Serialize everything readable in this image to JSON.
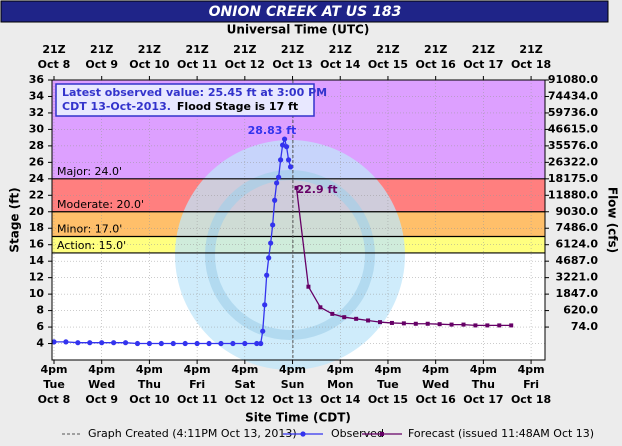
{
  "chart_data": {
    "type": "line",
    "title": "ONION CREEK AT US 183",
    "x2_label": "Universal Time (UTC)",
    "x_label": "Site Time (CDT)",
    "y_label": "Stage (ft)",
    "y2_label": "Flow (cfs)",
    "xlim": [
      "Oct 8 3pm",
      "Oct 18 11pm"
    ],
    "ylim": [
      2,
      36
    ],
    "yticks": [
      4,
      6,
      8,
      10,
      12,
      14,
      16,
      18,
      20,
      22,
      24,
      26,
      28,
      30,
      32,
      34,
      36
    ],
    "y2ticks": [
      {
        "value": 91080,
        "label": "91080.0"
      },
      {
        "value": 74434,
        "label": "74434.0"
      },
      {
        "value": 59736,
        "label": "59736.0"
      },
      {
        "value": 46615,
        "label": "46615.0"
      },
      {
        "value": 35576,
        "label": "35576.0"
      },
      {
        "value": 26322,
        "label": "26322.0"
      },
      {
        "value": 18175,
        "label": "18175.0"
      },
      {
        "value": 11880,
        "label": "11880.0"
      },
      {
        "value": 9030,
        "label": "9030.0"
      },
      {
        "value": 7486,
        "label": "7486.0"
      },
      {
        "value": 6124,
        "label": "6124.0"
      },
      {
        "value": 4687,
        "label": "4687.0"
      },
      {
        "value": 3221,
        "label": "3221.0"
      },
      {
        "value": 1847,
        "label": "1847.0"
      },
      {
        "value": 620,
        "label": "620.0"
      },
      {
        "value": 74,
        "label": "74.0"
      }
    ],
    "xticks": [
      {
        "value": "Oct 8 4pm",
        "label": [
          "4pm",
          "Tue",
          "Oct 8"
        ]
      },
      {
        "value": "Oct 9 4pm",
        "label": [
          "4pm",
          "Wed",
          "Oct 9"
        ]
      },
      {
        "value": "Oct 10 4pm",
        "label": [
          "4pm",
          "Thu",
          "Oct 10"
        ]
      },
      {
        "value": "Oct 11 4pm",
        "label": [
          "4pm",
          "Fri",
          "Oct 11"
        ]
      },
      {
        "value": "Oct 12 4pm",
        "label": [
          "4pm",
          "Sat",
          "Oct 12"
        ]
      },
      {
        "value": "Oct 13 4pm",
        "label": [
          "4pm",
          "Sun",
          "Oct 13"
        ]
      },
      {
        "value": "Oct 14 4pm",
        "label": [
          "4pm",
          "Mon",
          "Oct 14"
        ]
      },
      {
        "value": "Oct 15 4pm",
        "label": [
          "4pm",
          "Tue",
          "Oct 15"
        ]
      },
      {
        "value": "Oct 16 4pm",
        "label": [
          "4pm",
          "Wed",
          "Oct 16"
        ]
      },
      {
        "value": "Oct 17 4pm",
        "label": [
          "4pm",
          "Thu",
          "Oct 17"
        ]
      },
      {
        "value": "Oct 18 4pm",
        "label": [
          "4pm",
          "Fri",
          "Oct 18"
        ]
      }
    ],
    "x2ticks": [
      {
        "value": "Oct 8 4pm",
        "label": [
          "21Z",
          "Oct 8"
        ]
      },
      {
        "value": "Oct 9 4pm",
        "label": [
          "21Z",
          "Oct 9"
        ]
      },
      {
        "value": "Oct 10 4pm",
        "label": [
          "21Z",
          "Oct 10"
        ]
      },
      {
        "value": "Oct 11 4pm",
        "label": [
          "21Z",
          "Oct 11"
        ]
      },
      {
        "value": "Oct 12 4pm",
        "label": [
          "21Z",
          "Oct 12"
        ]
      },
      {
        "value": "Oct 13 4pm",
        "label": [
          "21Z",
          "Oct 13"
        ]
      },
      {
        "value": "Oct 14 4pm",
        "label": [
          "21Z",
          "Oct 14"
        ]
      },
      {
        "value": "Oct 15 4pm",
        "label": [
          "21Z",
          "Oct 15"
        ]
      },
      {
        "value": "Oct 16 4pm",
        "label": [
          "21Z",
          "Oct 16"
        ]
      },
      {
        "value": "Oct 17 4pm",
        "label": [
          "21Z",
          "Oct 17"
        ]
      },
      {
        "value": "Oct 18 4pm",
        "label": [
          "21Z",
          "Oct 18"
        ]
      }
    ],
    "grid": true,
    "flood_stages": [
      {
        "label": "Major: 24.0'",
        "value": 24,
        "color": "#dda0ff"
      },
      {
        "label": "Moderate: 20.0'",
        "value": 20,
        "color": "#ff7f7f"
      },
      {
        "label": "Minor: 17.0'",
        "value": 17,
        "color": "#ffbf6a"
      },
      {
        "label": "Action: 15.0'",
        "value": 15,
        "color": "#ffff80"
      }
    ],
    "series": [
      {
        "name": "Observed",
        "color": "#3333ee",
        "x": [
          "Oct 8 4pm",
          "Oct 8 10pm",
          "Oct 9 4am",
          "Oct 9 10am",
          "Oct 9 4pm",
          "Oct 9 10pm",
          "Oct 10 4am",
          "Oct 10 10am",
          "Oct 10 4pm",
          "Oct 10 10pm",
          "Oct 11 4am",
          "Oct 11 10am",
          "Oct 11 4pm",
          "Oct 11 10pm",
          "Oct 12 4am",
          "Oct 12 10am",
          "Oct 12 4pm",
          "Oct 12 10pm",
          "Oct 13 12am",
          "Oct 13 1am",
          "Oct 13 2am",
          "Oct 13 3am",
          "Oct 13 4am",
          "Oct 13 5am",
          "Oct 13 6am",
          "Oct 13 7am",
          "Oct 13 8am",
          "Oct 13 9am",
          "Oct 13 10am",
          "Oct 13 11am",
          "Oct 13 12pm",
          "Oct 13 1pm",
          "Oct 13 2pm",
          "Oct 13 3pm"
        ],
        "values": [
          4.2,
          4.2,
          4.1,
          4.1,
          4.1,
          4.1,
          4.1,
          4.0,
          4.0,
          4.0,
          4.0,
          4.0,
          4.0,
          4.0,
          4.0,
          4.0,
          4.0,
          4.0,
          4.0,
          5.5,
          8.7,
          12.3,
          14.4,
          16.2,
          18.4,
          21.4,
          23.5,
          24.2,
          26.3,
          28.1,
          28.83,
          27.9,
          26.3,
          25.45
        ]
      },
      {
        "name": "Forecast (issued 11:48AM Oct 13)",
        "color": "#660066",
        "x": [
          "Oct 13 6pm",
          "Oct 14 12am",
          "Oct 14 6am",
          "Oct 14 12pm",
          "Oct 14 6pm",
          "Oct 15 12am",
          "Oct 15 6am",
          "Oct 15 12pm",
          "Oct 15 6pm",
          "Oct 16 12am",
          "Oct 16 6am",
          "Oct 16 12pm",
          "Oct 16 6pm",
          "Oct 17 12am",
          "Oct 17 6am",
          "Oct 17 12pm",
          "Oct 17 6pm",
          "Oct 18 12am",
          "Oct 18 6am"
        ],
        "values": [
          22.9,
          10.9,
          8.4,
          7.6,
          7.2,
          7.0,
          6.8,
          6.6,
          6.5,
          6.45,
          6.4,
          6.4,
          6.35,
          6.3,
          6.3,
          6.2,
          6.2,
          6.2,
          6.2
        ]
      }
    ],
    "created_line": {
      "name": "Graph Created (4:11PM Oct 13, 2013)",
      "x": "Oct 13 4:11pm"
    },
    "peak_labels": [
      {
        "text": "28.83 ft",
        "series": 0,
        "index": 30
      },
      {
        "text": "22.9 ft",
        "series": 1,
        "index": 0
      }
    ],
    "annotation": [
      "Latest observed value: 25.45 ft at 3:00 PM",
      "CDT 13-Oct-2013.",
      "Flood Stage is 17 ft"
    ]
  }
}
